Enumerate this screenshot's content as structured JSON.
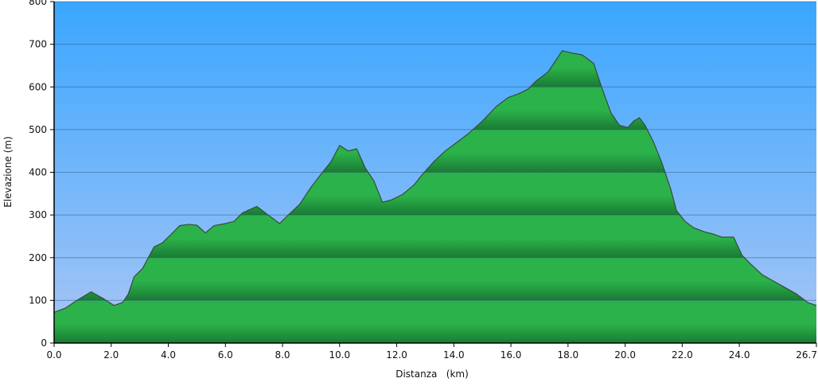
{
  "chart_data": {
    "type": "area",
    "xlabel": "Distanza   (km)",
    "ylabel": "Elevazione (m)",
    "xlim": [
      0,
      26.7
    ],
    "ylim": [
      0,
      800
    ],
    "x_ticks": [
      "0.0",
      "2.0",
      "4.0",
      "6.0",
      "8.0",
      "10.0",
      "12.0",
      "14.0",
      "16.0",
      "18.0",
      "20.0",
      "22.0",
      "24.0",
      "26.7"
    ],
    "y_ticks": [
      "0",
      "100",
      "200",
      "300",
      "400",
      "500",
      "600",
      "700",
      "800"
    ],
    "grid": "horizontal",
    "colors": {
      "sky_top": "#3aa6ff",
      "sky_bottom": "#a9c6f5",
      "fill_light": "#2bb24a",
      "fill_dark": "#1a7a34",
      "outline": "#3a4a3a"
    },
    "x": [
      0,
      0.4,
      0.8,
      1.3,
      1.7,
      2.1,
      2.4,
      2.6,
      2.8,
      3.1,
      3.5,
      3.8,
      4.1,
      4.4,
      4.7,
      5.0,
      5.3,
      5.6,
      6.0,
      6.3,
      6.6,
      7.1,
      7.4,
      7.9,
      8.2,
      8.6,
      9.0,
      9.4,
      9.7,
      10.0,
      10.3,
      10.6,
      10.9,
      11.2,
      11.5,
      11.8,
      12.2,
      12.6,
      12.9,
      13.3,
      13.7,
      14.1,
      14.5,
      15.0,
      15.5,
      15.9,
      16.3,
      16.6,
      16.9,
      17.3,
      17.6,
      17.8,
      18.1,
      18.5,
      18.9,
      19.2,
      19.5,
      19.8,
      20.1,
      20.3,
      20.5,
      20.7,
      21.0,
      21.3,
      21.6,
      21.8,
      22.1,
      22.4,
      22.8,
      23.1,
      23.4,
      23.8,
      24.1,
      24.4,
      24.8,
      25.2,
      25.6,
      26.0,
      26.4,
      26.7
    ],
    "y": [
      72,
      82,
      100,
      120,
      105,
      88,
      95,
      115,
      155,
      175,
      225,
      235,
      255,
      275,
      278,
      276,
      258,
      275,
      280,
      285,
      305,
      320,
      305,
      280,
      300,
      325,
      365,
      400,
      425,
      463,
      450,
      455,
      410,
      380,
      330,
      335,
      348,
      370,
      395,
      425,
      450,
      470,
      490,
      520,
      555,
      575,
      585,
      595,
      615,
      635,
      665,
      685,
      680,
      675,
      655,
      595,
      540,
      510,
      505,
      520,
      528,
      510,
      470,
      420,
      360,
      310,
      285,
      270,
      260,
      255,
      248,
      248,
      205,
      185,
      160,
      145,
      130,
      115,
      95,
      88
    ]
  }
}
